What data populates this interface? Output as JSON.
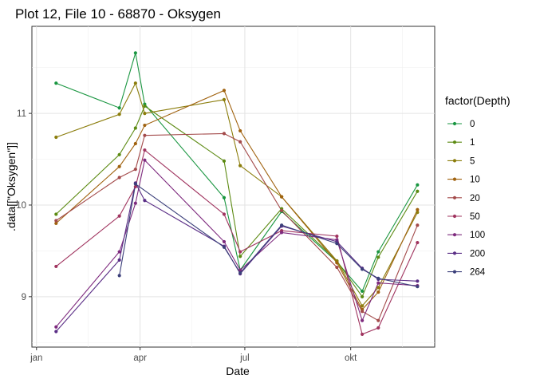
{
  "chart_data": {
    "type": "line",
    "title": "Plot 12, File 10 - 68870  -  Oksygen",
    "xlabel": "Date",
    "ylabel": ".data[[\"Oksygen\"]]",
    "x_ticks": [
      "jan",
      "apr",
      "jul",
      "okt"
    ],
    "y_ticks": [
      9,
      10,
      11
    ],
    "ylim": [
      8.45,
      11.95
    ],
    "grid": true,
    "legend_title": "factor(Depth)",
    "legend_position": "right",
    "x": [
      "2023-01-18",
      "2023-03-14",
      "2023-04-05",
      "2023-06-13",
      "2023-06-27",
      "2023-08-02",
      "2023-09-19",
      "2023-10-11",
      "2023-10-25",
      "2023-11-28"
    ],
    "series": [
      {
        "name": "0",
        "color": "#1a9641",
        "points": [
          [
            "2023-01-18",
            11.33
          ],
          [
            "2023-03-14",
            11.06
          ],
          [
            "2023-03-28",
            11.66
          ],
          [
            "2023-04-05",
            11.1
          ],
          [
            "2023-06-13",
            10.08
          ],
          [
            "2023-06-27",
            9.29
          ],
          [
            "2023-08-02",
            9.93
          ],
          [
            "2023-09-19",
            9.38
          ],
          [
            "2023-10-11",
            9.06
          ],
          [
            "2023-10-25",
            9.49
          ],
          [
            "2023-11-28",
            10.22
          ]
        ]
      },
      {
        "name": "1",
        "color": "#5c8a12",
        "points": [
          [
            "2023-01-18",
            9.9
          ],
          [
            "2023-03-14",
            10.55
          ],
          [
            "2023-03-28",
            10.84
          ],
          [
            "2023-04-05",
            11.08
          ],
          [
            "2023-06-13",
            10.48
          ],
          [
            "2023-06-27",
            9.44
          ],
          [
            "2023-08-02",
            9.96
          ],
          [
            "2023-09-19",
            9.39
          ],
          [
            "2023-10-11",
            9.0
          ],
          [
            "2023-10-25",
            9.43
          ],
          [
            "2023-11-28",
            10.15
          ]
        ]
      },
      {
        "name": "5",
        "color": "#8b7d0c",
        "points": [
          [
            "2023-01-18",
            10.74
          ],
          [
            "2023-03-14",
            10.99
          ],
          [
            "2023-03-28",
            11.33
          ],
          [
            "2023-04-05",
            11.0
          ],
          [
            "2023-06-13",
            11.15
          ],
          [
            "2023-06-27",
            10.43
          ],
          [
            "2023-08-02",
            10.09
          ],
          [
            "2023-09-19",
            9.39
          ],
          [
            "2023-10-11",
            8.9
          ],
          [
            "2023-10-25",
            9.1
          ],
          [
            "2023-11-28",
            9.92
          ]
        ]
      },
      {
        "name": "10",
        "color": "#a0620f",
        "points": [
          [
            "2023-01-18",
            9.8
          ],
          [
            "2023-03-14",
            10.42
          ],
          [
            "2023-03-28",
            10.67
          ],
          [
            "2023-04-05",
            10.87
          ],
          [
            "2023-06-13",
            11.25
          ],
          [
            "2023-06-27",
            10.81
          ],
          [
            "2023-08-02",
            10.09
          ],
          [
            "2023-09-19",
            9.37
          ],
          [
            "2023-10-11",
            8.86
          ],
          [
            "2023-10-25",
            9.05
          ],
          [
            "2023-11-28",
            9.95
          ]
        ]
      },
      {
        "name": "20",
        "color": "#a34a4a",
        "points": [
          [
            "2023-01-18",
            9.83
          ],
          [
            "2023-03-14",
            10.3
          ],
          [
            "2023-03-28",
            10.39
          ],
          [
            "2023-04-05",
            10.76
          ],
          [
            "2023-06-13",
            10.78
          ],
          [
            "2023-06-27",
            10.69
          ],
          [
            "2023-08-02",
            9.94
          ],
          [
            "2023-09-19",
            9.32
          ],
          [
            "2023-10-11",
            8.84
          ],
          [
            "2023-10-25",
            8.74
          ],
          [
            "2023-11-28",
            9.78
          ]
        ]
      },
      {
        "name": "50",
        "color": "#a0345f",
        "points": [
          [
            "2023-01-18",
            9.33
          ],
          [
            "2023-03-14",
            9.88
          ],
          [
            "2023-03-28",
            10.2
          ],
          [
            "2023-04-05",
            10.6
          ],
          [
            "2023-06-13",
            9.9
          ],
          [
            "2023-06-27",
            9.49
          ],
          [
            "2023-08-02",
            9.72
          ],
          [
            "2023-09-19",
            9.66
          ],
          [
            "2023-10-11",
            8.59
          ],
          [
            "2023-10-25",
            8.66
          ],
          [
            "2023-11-28",
            9.59
          ]
        ]
      },
      {
        "name": "100",
        "color": "#7e2a7e",
        "points": [
          [
            "2023-01-18",
            8.67
          ],
          [
            "2023-03-14",
            9.49
          ],
          [
            "2023-03-28",
            10.02
          ],
          [
            "2023-04-05",
            10.49
          ],
          [
            "2023-06-13",
            9.6
          ],
          [
            "2023-06-27",
            9.29
          ],
          [
            "2023-08-02",
            9.7
          ],
          [
            "2023-09-19",
            9.62
          ],
          [
            "2023-10-11",
            8.74
          ],
          [
            "2023-10-25",
            9.15
          ],
          [
            "2023-11-28",
            9.12
          ]
        ]
      },
      {
        "name": "200",
        "color": "#5a2e86",
        "points": [
          [
            "2023-01-18",
            8.62
          ],
          [
            "2023-03-14",
            9.4
          ],
          [
            "2023-03-28",
            10.24
          ],
          [
            "2023-04-05",
            10.05
          ],
          [
            "2023-06-13",
            9.55
          ],
          [
            "2023-06-27",
            9.25
          ],
          [
            "2023-08-02",
            9.77
          ],
          [
            "2023-09-19",
            9.6
          ],
          [
            "2023-10-11",
            9.31
          ],
          [
            "2023-10-25",
            9.19
          ],
          [
            "2023-11-28",
            9.17
          ]
        ]
      },
      {
        "name": "264",
        "color": "#3b3f7a",
        "points": [
          [
            "2023-03-14",
            9.23
          ],
          [
            "2023-03-28",
            10.23
          ],
          [
            "2023-06-13",
            9.54
          ],
          [
            "2023-06-27",
            9.26
          ],
          [
            "2023-08-02",
            9.78
          ],
          [
            "2023-09-19",
            9.58
          ],
          [
            "2023-10-11",
            9.3
          ],
          [
            "2023-10-25",
            9.2
          ],
          [
            "2023-11-28",
            9.11
          ]
        ]
      }
    ]
  }
}
